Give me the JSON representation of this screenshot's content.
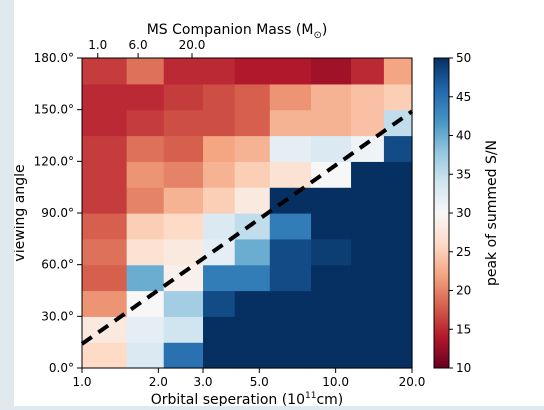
{
  "chart_data": {
    "type": "heatmap",
    "title": "",
    "top_axis_label": "MS Companion Mass (M",
    "top_axis_label_subscript": "⊙",
    "top_axis_label_close": ")",
    "top_tick_labels": [
      "1.0",
      "6.0",
      "20.0"
    ],
    "top_tick_positions": [
      1.43,
      2.53,
      4.0
    ],
    "xlabel": "Orbital seperation (10",
    "xlabel_superscript": "11",
    "xlabel_unit": "cm)",
    "ylabel": "viewing angle",
    "x_tick_labels": [
      "1.0",
      "2.0",
      "3.0",
      "5.0",
      "10.0",
      "20.0"
    ],
    "x_tick_values": [
      1.0,
      2.0,
      3.0,
      5.0,
      10.0,
      20.0
    ],
    "x_scale": "log",
    "x_range": [
      1.0,
      20.0
    ],
    "x_edges": [
      1.0,
      1.5,
      2.1,
      3.0,
      4.0,
      5.5,
      8.0,
      11.5,
      15.5,
      20.0
    ],
    "y_tick_labels": [
      "0.0°",
      "30.0°",
      "60.0°",
      "90.0°",
      "120.0°",
      "150.0°",
      "180.0°"
    ],
    "y_tick_values": [
      0,
      30,
      60,
      90,
      120,
      150,
      180
    ],
    "y_range": [
      0,
      180
    ],
    "y_rows": 12,
    "values": [
      [
        26,
        33,
        45,
        50,
        50,
        50,
        50,
        50,
        50
      ],
      [
        28,
        32,
        34,
        50,
        50,
        50,
        50,
        50,
        50
      ],
      [
        21,
        30,
        37,
        48,
        50,
        50,
        50,
        50,
        50
      ],
      [
        18,
        40,
        29,
        44,
        44,
        48,
        50,
        50,
        50
      ],
      [
        19,
        27,
        28,
        32,
        40,
        48,
        49,
        50,
        50
      ],
      [
        18,
        25,
        26,
        33,
        35,
        44,
        50,
        50,
        50
      ],
      [
        16,
        20,
        23,
        25,
        28,
        50,
        50,
        50,
        50
      ],
      [
        16,
        21,
        20,
        23,
        25,
        27,
        30,
        50,
        50
      ],
      [
        16,
        19,
        18,
        22,
        23,
        32,
        33,
        31,
        48
      ],
      [
        15,
        16,
        17,
        17,
        18,
        23,
        23,
        24,
        35
      ],
      [
        15,
        15,
        16,
        17,
        18,
        21,
        23,
        24,
        25
      ],
      [
        16,
        19,
        15,
        15,
        14,
        14,
        13,
        15,
        22
      ]
    ],
    "colorbar": {
      "label": "peak of summed S/N",
      "range": [
        10,
        50
      ],
      "tick_labels": [
        "10",
        "15",
        "20",
        "25",
        "30",
        "35",
        "40",
        "45",
        "50"
      ],
      "tick_values": [
        10,
        15,
        20,
        25,
        30,
        35,
        40,
        45,
        50
      ],
      "colormap": "RdBu",
      "color_stops": [
        "#67001f",
        "#b2182b",
        "#d6604d",
        "#f4a582",
        "#fddbc7",
        "#f7f7f7",
        "#d1e5f0",
        "#92c5de",
        "#4393c3",
        "#2166ac",
        "#053061"
      ]
    },
    "annotation_line": {
      "style": "dashed",
      "color": "#000000",
      "from": [
        1.0,
        14
      ],
      "to": [
        20.0,
        149
      ]
    },
    "grid": false
  }
}
